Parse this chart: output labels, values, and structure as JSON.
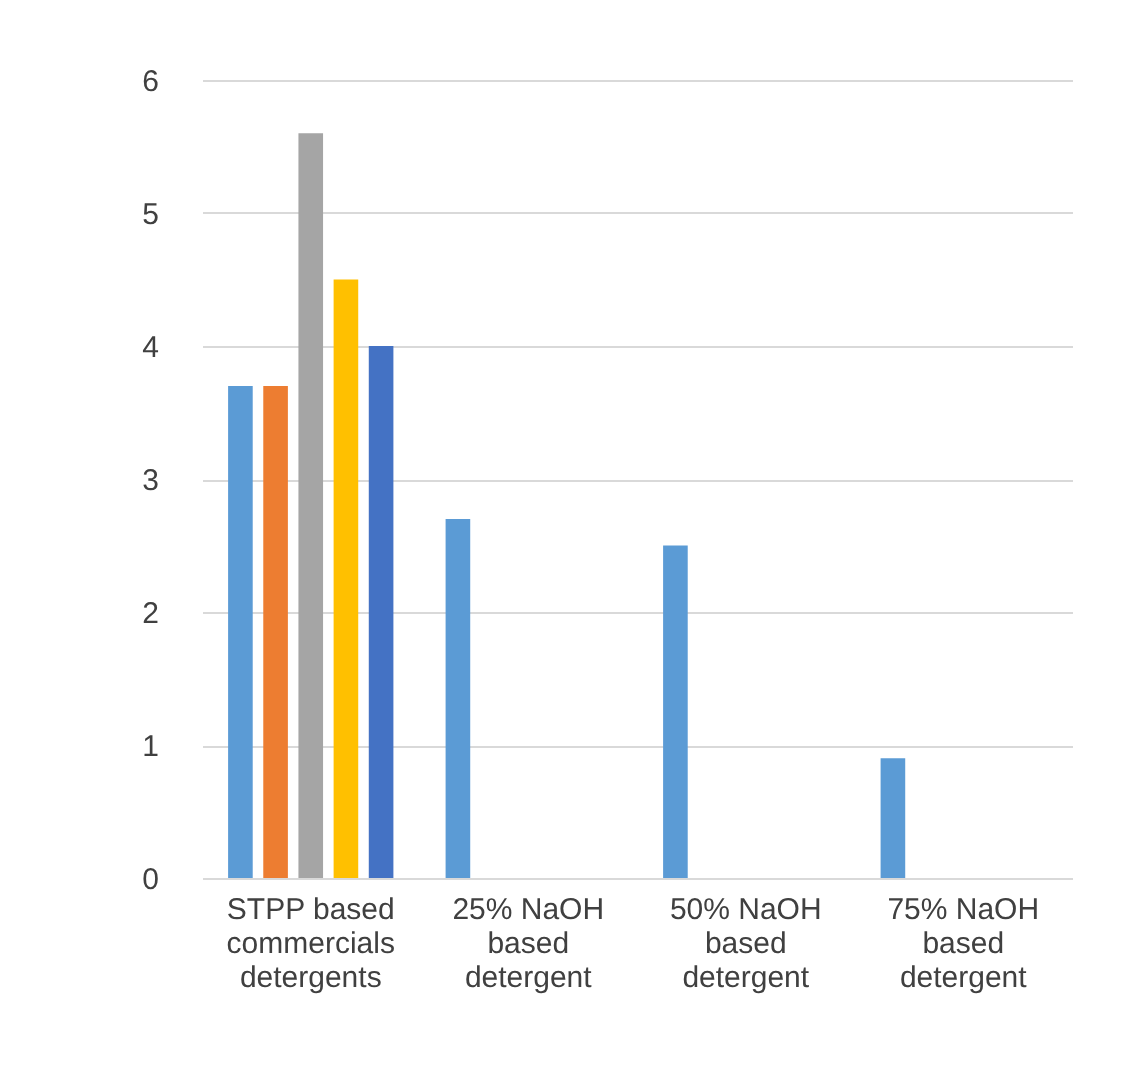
{
  "chart_data": {
    "type": "bar",
    "categories": [
      "STPP based commercials detergents",
      "25% NaOH based detergent",
      "50% NaOH based detergent",
      "75% NaOH based detergent"
    ],
    "series": [
      {
        "color": "#5b9bd5",
        "values": [
          3.7,
          2.7,
          2.5,
          0.9
        ]
      },
      {
        "color": "#ed7d31",
        "values": [
          3.7,
          null,
          null,
          null
        ]
      },
      {
        "color": "#a5a5a5",
        "values": [
          5.6,
          null,
          null,
          null
        ]
      },
      {
        "color": "#ffc000",
        "values": [
          4.5,
          null,
          null,
          null
        ]
      },
      {
        "color": "#4472c4",
        "values": [
          4.0,
          null,
          null,
          null
        ]
      }
    ],
    "ylim": [
      0,
      6
    ],
    "yticks": [
      0,
      1,
      2,
      3,
      4,
      5,
      6
    ],
    "grid": "y",
    "legend": false
  }
}
